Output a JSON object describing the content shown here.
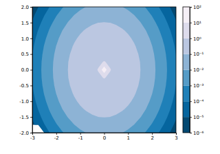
{
  "chart_data": {
    "type": "contour",
    "x": [
      -3,
      -2.75,
      -2.5,
      -2.25,
      -2,
      -1.75,
      -1.5,
      -1.25,
      -1,
      -0.75,
      -0.5,
      -0.25,
      0,
      0.25,
      0.5,
      0.75,
      1,
      1.25,
      1.5,
      1.75,
      2,
      2.25,
      2.5,
      2.75,
      3
    ],
    "y": [
      -2,
      -1.75,
      -1.5,
      -1.25,
      -1,
      -0.75,
      -0.5,
      -0.25,
      0,
      0.25,
      0.5,
      0.75,
      1,
      1.25,
      1.5,
      1.75,
      2
    ],
    "z": [
      [
        null,
        null,
        3.54e-05,
        0.000116,
        0.000336,
        0.000857,
        0.00193,
        0.00384,
        0.00674,
        0.0104,
        0.0143,
        0.0172,
        0.0183,
        0.0172,
        0.0143,
        0.0104,
        0.00674,
        0.00384,
        0.00193,
        0.000857,
        0.000336,
        0.000116,
        3.54e-05,
        9.5e-06,
        2.26e-06
      ],
      [
        5.77e-06,
        2.43e-05,
        9.03e-05,
        0.000296,
        0.000857,
        0.00219,
        0.00493,
        0.0098,
        0.0172,
        0.0267,
        0.0364,
        0.0439,
        0.0468,
        0.0439,
        0.0364,
        0.0267,
        0.0172,
        0.0098,
        0.00493,
        0.00219,
        0.000857,
        0.000296,
        9.03e-05,
        2.43e-05,
        5.77e-06
      ],
      [
        1.3e-05,
        5.47e-05,
        0.000204,
        0.000667,
        0.00193,
        0.00493,
        0.0111,
        0.0221,
        0.0388,
        0.06,
        0.0821,
        0.099,
        0.105,
        0.099,
        0.0821,
        0.06,
        0.0388,
        0.0221,
        0.0111,
        0.00493,
        0.00193,
        0.000667,
        0.000204,
        5.47e-05,
        1.3e-05
      ],
      [
        2.59e-05,
        0.000109,
        0.000405,
        0.00133,
        0.00384,
        0.0098,
        0.0221,
        0.0439,
        0.0771,
        0.119,
        0.163,
        0.197,
        0.21,
        0.197,
        0.163,
        0.119,
        0.0771,
        0.0439,
        0.0221,
        0.0098,
        0.00384,
        0.00133,
        0.000405,
        0.000109,
        2.59e-05
      ],
      [
        4.54e-05,
        0.000191,
        0.00071,
        0.00233,
        0.00674,
        0.0172,
        0.0388,
        0.0771,
        0.135,
        0.21,
        0.287,
        0.346,
        0.368,
        0.346,
        0.287,
        0.21,
        0.135,
        0.0771,
        0.0388,
        0.0172,
        0.00674,
        0.00233,
        0.00071,
        0.000191,
        4.54e-05
      ],
      [
        7.03e-05,
        0.000296,
        0.0011,
        0.00361,
        0.0104,
        0.0267,
        0.06,
        0.119,
        0.21,
        0.325,
        0.444,
        0.535,
        0.57,
        0.535,
        0.444,
        0.325,
        0.21,
        0.119,
        0.06,
        0.0267,
        0.0104,
        0.00361,
        0.0011,
        0.000296,
        7.03e-05
      ],
      [
        9.61e-05,
        0.000405,
        0.0015,
        0.00493,
        0.0143,
        0.0364,
        0.0821,
        0.163,
        0.287,
        0.444,
        0.607,
        0.732,
        0.779,
        0.732,
        0.607,
        0.444,
        0.287,
        0.163,
        0.0821,
        0.0364,
        0.0143,
        0.00493,
        0.0015,
        0.000405,
        9.61e-05
      ],
      [
        0.000116,
        0.000488,
        0.00181,
        0.00595,
        0.0172,
        0.0439,
        0.099,
        0.197,
        0.346,
        0.535,
        0.732,
        0.883,
        1.036,
        0.883,
        0.732,
        0.535,
        0.346,
        0.197,
        0.099,
        0.0439,
        0.0172,
        0.00595,
        0.00181,
        0.000488,
        0.000116
      ],
      [
        0.000123,
        0.000519,
        0.00193,
        0.00633,
        0.0183,
        0.0468,
        0.105,
        0.21,
        0.368,
        0.57,
        0.779,
        1.036,
        51,
        1.036,
        0.779,
        0.57,
        0.368,
        0.21,
        0.105,
        0.0468,
        0.0183,
        0.00633,
        0.00193,
        0.000519,
        0.000123
      ],
      [
        0.000116,
        0.000488,
        0.00181,
        0.00595,
        0.0172,
        0.0439,
        0.099,
        0.197,
        0.346,
        0.535,
        0.732,
        0.883,
        1.036,
        0.883,
        0.732,
        0.535,
        0.346,
        0.197,
        0.099,
        0.0439,
        0.0172,
        0.00595,
        0.00181,
        0.000488,
        0.000116
      ],
      [
        9.61e-05,
        0.000405,
        0.0015,
        0.00493,
        0.0143,
        0.0364,
        0.0821,
        0.163,
        0.287,
        0.444,
        0.607,
        0.732,
        0.779,
        0.732,
        0.607,
        0.444,
        0.287,
        0.163,
        0.0821,
        0.0364,
        0.0143,
        0.00493,
        0.0015,
        0.000405,
        9.61e-05
      ],
      [
        7.03e-05,
        0.000296,
        0.0011,
        0.00361,
        0.0104,
        0.0267,
        0.06,
        0.119,
        0.21,
        0.325,
        0.444,
        0.535,
        0.57,
        0.535,
        0.444,
        0.325,
        0.21,
        0.119,
        0.06,
        0.0267,
        0.0104,
        0.00361,
        0.0011,
        0.000296,
        7.03e-05
      ],
      [
        4.54e-05,
        0.000191,
        0.00071,
        0.00233,
        0.00674,
        0.0172,
        0.0388,
        0.0771,
        0.135,
        0.21,
        0.287,
        0.346,
        0.368,
        0.346,
        0.287,
        0.21,
        0.135,
        0.0771,
        0.0388,
        0.0172,
        0.00674,
        0.00233,
        0.00071,
        0.000191,
        4.54e-05
      ],
      [
        2.59e-05,
        0.000109,
        0.000405,
        0.00133,
        0.00384,
        0.0098,
        0.0221,
        0.0439,
        0.0771,
        0.119,
        0.163,
        0.197,
        0.21,
        0.197,
        0.163,
        0.119,
        0.0771,
        0.0439,
        0.0221,
        0.0098,
        0.00384,
        0.00133,
        0.000405,
        0.000109,
        2.59e-05
      ],
      [
        1.3e-05,
        5.47e-05,
        0.000204,
        0.000667,
        0.00193,
        0.00493,
        0.0111,
        0.0221,
        0.0388,
        0.06,
        0.0821,
        0.099,
        0.105,
        0.099,
        0.0821,
        0.06,
        0.0388,
        0.0221,
        0.0111,
        0.00493,
        0.00193,
        0.000667,
        0.000204,
        5.47e-05,
        1.3e-05
      ],
      [
        5.77e-06,
        2.43e-05,
        9.03e-05,
        0.000296,
        0.000857,
        0.00219,
        0.00493,
        0.0098,
        0.0172,
        0.0267,
        0.0364,
        0.0439,
        0.0468,
        0.0439,
        0.0364,
        0.0267,
        0.0172,
        0.0098,
        0.00493,
        0.00219,
        0.000857,
        0.000296,
        9.03e-05,
        2.43e-05,
        5.77e-06
      ],
      [
        2.26e-06,
        9.5e-06,
        3.54e-05,
        0.000116,
        0.000336,
        0.000857,
        0.00193,
        0.00384,
        0.00674,
        0.0104,
        0.0143,
        0.0172,
        0.0183,
        0.0172,
        0.0143,
        0.0104,
        0.00674,
        0.00384,
        0.00193,
        0.000857,
        0.000336,
        0.000116,
        3.54e-05,
        9.5e-06,
        2.26e-06
      ]
    ],
    "xlim": [
      -3,
      3
    ],
    "ylim": [
      -2,
      2
    ],
    "xticks": [
      -3,
      -2,
      -1,
      0,
      1,
      2,
      3
    ],
    "yticks": [
      {
        "value": -2,
        "label": "-2.0"
      },
      -1.5,
      {
        "value": -1,
        "label": "-1.0"
      },
      -0.5,
      {
        "value": 0,
        "label": "0.0"
      },
      0.5,
      {
        "value": 1,
        "label": "1.0"
      },
      1.5,
      {
        "value": 2,
        "label": "2.0"
      }
    ],
    "zlim": [
      1e-06,
      100
    ],
    "zticks": [
      {
        "value": 1e-06,
        "label": "10⁻⁶"
      },
      {
        "value": 1e-05,
        "label": "10⁻⁵"
      },
      {
        "value": 0.0001,
        "label": "10⁻⁴"
      },
      {
        "value": 0.001,
        "label": "10⁻³"
      },
      {
        "value": 0.01,
        "label": "10⁻²"
      },
      {
        "value": 0.1,
        "label": "10⁻¹"
      },
      {
        "value": 1,
        "label": "10⁰"
      },
      {
        "value": 10,
        "label": "10¹"
      },
      {
        "value": 100,
        "label": "10²"
      }
    ]
  }
}
